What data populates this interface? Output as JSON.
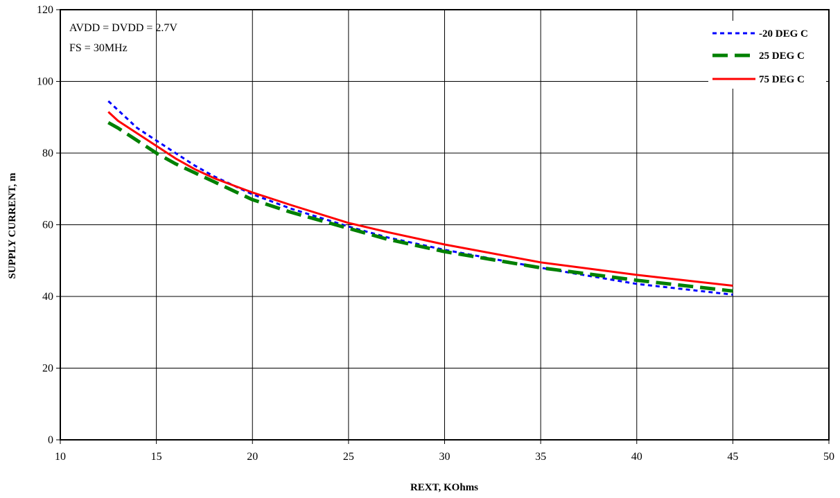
{
  "chart_data": {
    "type": "line",
    "title": "",
    "xlabel": "REXT, KOhms",
    "ylabel": "SUPPLY CURRENT, m",
    "xlim": [
      10,
      50
    ],
    "ylim": [
      0,
      120
    ],
    "x_ticks": [
      10,
      15,
      20,
      25,
      30,
      35,
      40,
      45,
      50
    ],
    "y_ticks": [
      0,
      20,
      40,
      60,
      80,
      100,
      120
    ],
    "grid": true,
    "legend_position": "top-right",
    "annotations": [
      "AVDD = DVDD = 2.7V",
      "FS = 30MHz"
    ],
    "series": [
      {
        "name": "-20 DEG C",
        "color": "#0000ff",
        "style": "dotted",
        "x": [
          12.5,
          13,
          14,
          15,
          16,
          17,
          18,
          19,
          20,
          22,
          25,
          27,
          30,
          35,
          40,
          45
        ],
        "values": [
          94.5,
          92,
          87,
          83.5,
          80,
          76.5,
          73.5,
          71,
          68.5,
          64.5,
          59.5,
          56.5,
          53,
          48,
          43.5,
          40.5
        ]
      },
      {
        "name": "25 DEG C",
        "color": "#008000",
        "style": "dashed",
        "x": [
          12.5,
          13,
          14,
          15,
          16,
          17,
          18,
          19,
          20,
          22,
          25,
          27,
          30,
          35,
          40,
          45
        ],
        "values": [
          88.5,
          87,
          83.5,
          80,
          77,
          74.5,
          72,
          69.5,
          67,
          63.5,
          59,
          56,
          52.5,
          48,
          44.5,
          41.5
        ]
      },
      {
        "name": "75 DEG C",
        "color": "#ff0000",
        "style": "solid",
        "x": [
          12.5,
          13,
          14,
          15,
          16,
          17,
          18,
          19,
          20,
          22,
          25,
          27,
          30,
          35,
          40,
          45
        ],
        "values": [
          91.5,
          89,
          85.5,
          82,
          78.5,
          75.5,
          73,
          71,
          69,
          65.5,
          60.5,
          58,
          54.5,
          49.5,
          46,
          43
        ]
      }
    ]
  }
}
